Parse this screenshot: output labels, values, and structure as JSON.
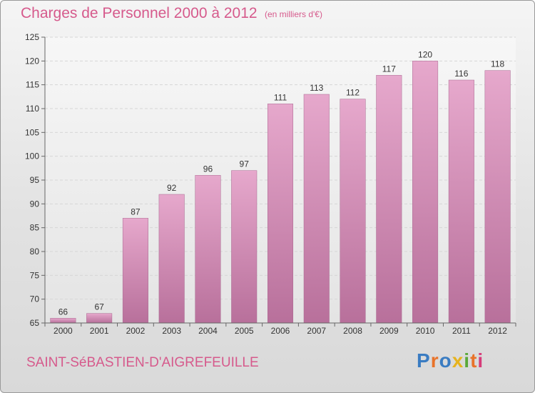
{
  "title": "Charges de Personnel 2000 à 2012",
  "subtitle": "(en milliers d'€)",
  "commune": "SAINT-SéBASTIEN-D'AIGREFEUILLE",
  "logo": {
    "text": "Proxiti",
    "colors": [
      "#3a7cc2",
      "#e8732a",
      "#3a7cc2",
      "#e6b31e",
      "#5aa83a",
      "#e8732a",
      "#d63c7a"
    ]
  },
  "colors": {
    "bar_top": "#e6a8cc",
    "bar_bottom": "#b8709b",
    "accent": "#d65a8c"
  },
  "chart_data": {
    "type": "bar",
    "categories": [
      "2000",
      "2001",
      "2002",
      "2003",
      "2004",
      "2005",
      "2006",
      "2007",
      "2008",
      "2009",
      "2010",
      "2011",
      "2012"
    ],
    "values": [
      66,
      67,
      87,
      92,
      96,
      97,
      111,
      113,
      112,
      117,
      120,
      116,
      118
    ],
    "ylim": [
      65,
      125
    ],
    "yticks": [
      65,
      70,
      75,
      80,
      85,
      90,
      95,
      100,
      105,
      110,
      115,
      120,
      125
    ],
    "grid": true,
    "title": "Charges de Personnel 2000 à 2012",
    "xlabel": "",
    "ylabel": ""
  }
}
